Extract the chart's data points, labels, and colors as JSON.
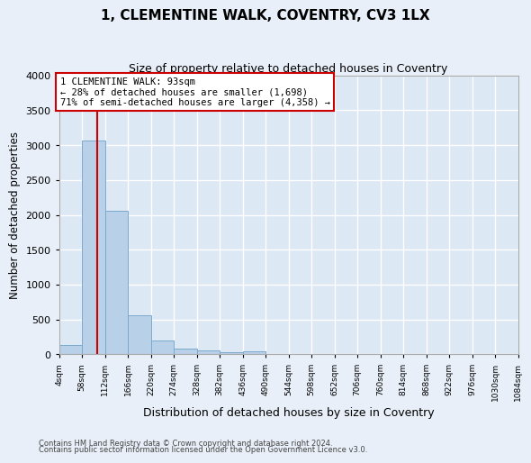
{
  "title": "1, CLEMENTINE WALK, COVENTRY, CV3 1LX",
  "subtitle": "Size of property relative to detached houses in Coventry",
  "xlabel": "Distribution of detached houses by size in Coventry",
  "ylabel": "Number of detached properties",
  "bar_color": "#b8d0e8",
  "bar_edge_color": "#7aaace",
  "bg_color": "#dde8f5",
  "fig_bg_color": "#e8eff8",
  "grid_color": "#ffffff",
  "vline_x": 93,
  "vline_color": "#cc0000",
  "bin_edges": [
    4,
    58,
    112,
    166,
    220,
    274,
    328,
    382,
    436,
    490,
    544,
    598,
    652,
    706,
    760,
    814,
    868,
    922,
    976,
    1030,
    1084
  ],
  "bar_heights": [
    140,
    3060,
    2060,
    560,
    200,
    80,
    55,
    35,
    45,
    0,
    0,
    0,
    0,
    0,
    0,
    0,
    0,
    0,
    0,
    0
  ],
  "annotation_line1": "1 CLEMENTINE WALK: 93sqm",
  "annotation_line2": "← 28% of detached houses are smaller (1,698)",
  "annotation_line3": "71% of semi-detached houses are larger (4,358) →",
  "annotation_box_color": "#ffffff",
  "annotation_border_color": "#cc0000",
  "ylim": [
    0,
    4000
  ],
  "yticks": [
    0,
    500,
    1000,
    1500,
    2000,
    2500,
    3000,
    3500,
    4000
  ],
  "footnote1": "Contains HM Land Registry data © Crown copyright and database right 2024.",
  "footnote2": "Contains public sector information licensed under the Open Government Licence v3.0."
}
